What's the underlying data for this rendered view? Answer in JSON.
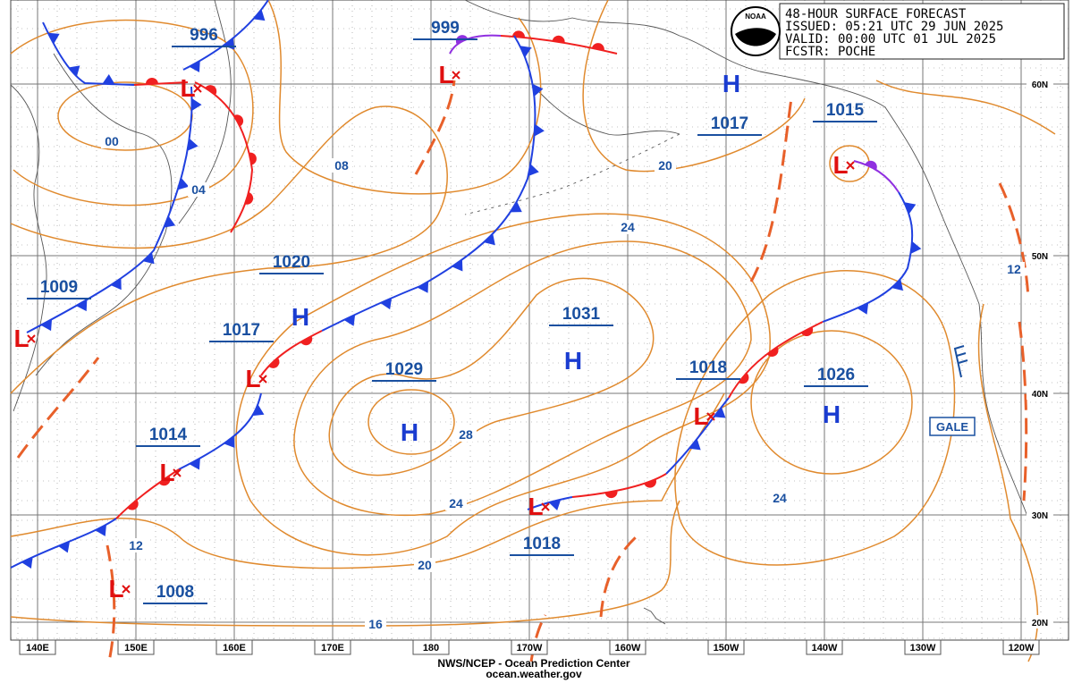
{
  "header": {
    "lines": [
      "48-HOUR SURFACE FORECAST",
      "ISSUED: 05:21 UTC 29 JUN 2025",
      "VALID:  00:00 UTC 01 JUL 2025",
      "FCSTR: POCHE"
    ]
  },
  "logo": "NOAA",
  "footer": {
    "agency": "NWS/NCEP - Ocean Prediction Center",
    "website": "ocean.weather.gov"
  },
  "longitude_labels": [
    "140E",
    "150E",
    "160E",
    "170E",
    "180",
    "170W",
    "160W",
    "150W",
    "140W",
    "130W",
    "120W"
  ],
  "latitude_labels": [
    "60N",
    "50N",
    "40N",
    "30N",
    "20N"
  ],
  "highs": [
    "H",
    "H",
    "H",
    "H",
    "H"
  ],
  "lows": [
    "L",
    "L",
    "L",
    "L",
    "L",
    "L",
    "L",
    "L",
    "L"
  ],
  "pressure_labels": [
    996,
    999,
    1017,
    1015,
    1020,
    1009,
    1017,
    1031,
    1029,
    1018,
    1026,
    1014,
    1018,
    1008
  ],
  "isobar_labels": [
    "00",
    "04",
    "08",
    "20",
    "24",
    "28",
    "24",
    "24",
    "20",
    "12",
    "16",
    "12"
  ],
  "warning": "GALE"
}
